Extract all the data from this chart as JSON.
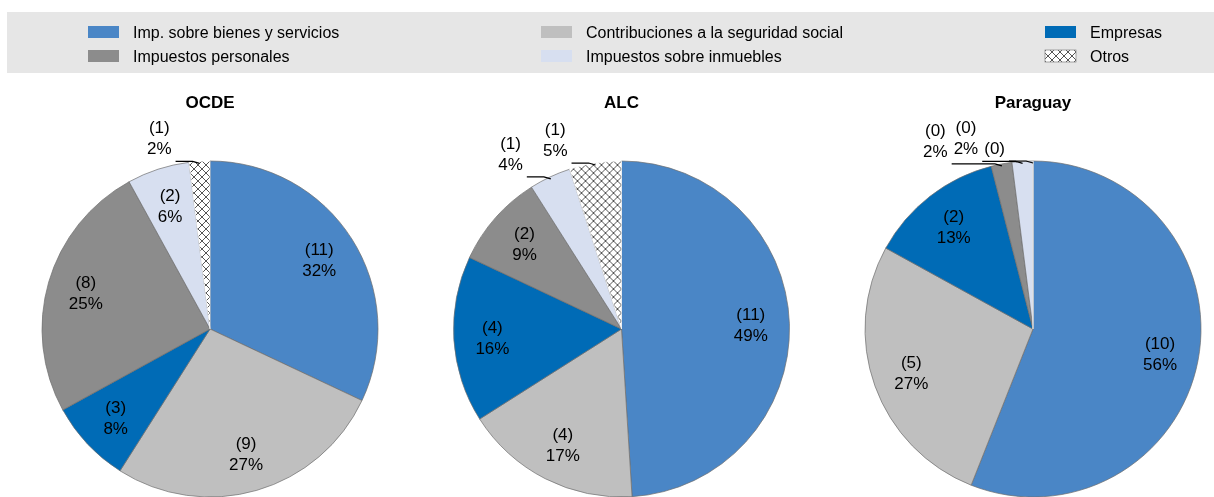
{
  "chart_data": [
    {
      "type": "pie",
      "title": "OCDE",
      "categories": [
        "Imp. sobre bienes y servicios",
        "Contribuciones a la seguridad social",
        "Empresas",
        "Impuestos personales",
        "Impuestos sobre inmuebles",
        "Otros"
      ],
      "values": [
        32,
        27,
        8,
        25,
        6,
        2
      ],
      "colors": [
        "#4a86c6",
        "#bfbfbf",
        "#006bb6",
        "#8c8c8c",
        "#d7dff0",
        "#ffffff"
      ],
      "value_labels": [
        "(11)\n32%",
        "(9)\n27%",
        "(3)\n8%",
        "(8)\n25%",
        "(2)\n6%",
        "(1)\n2%"
      ],
      "legend": "top"
    },
    {
      "type": "pie",
      "title": "ALC",
      "categories": [
        null,
        null,
        null,
        null,
        null,
        null
      ],
      "values": [
        49,
        17,
        16,
        9,
        4,
        5
      ],
      "colors": [
        "#4a86c6",
        "#bfbfbf",
        "#006bb6",
        "#8c8c8c",
        "#d7dff0",
        "#ffffff"
      ],
      "value_labels": [
        "(11)\n49%",
        "(4)\n17%",
        "(4)\n16%",
        "(2)\n9%",
        "(1)\n4%",
        "(1)\n5%"
      ]
    },
    {
      "type": "pie",
      "title": "Paraguay",
      "categories": [
        null,
        null,
        null,
        null,
        null,
        null
      ],
      "values": [
        56,
        27,
        13,
        2,
        2,
        0
      ],
      "colors": [
        "#4a86c6",
        "#bfbfbf",
        "#006bb6",
        "#8c8c8c",
        "#d7dff0",
        "#ffffff"
      ],
      "value_labels": [
        "(10)\n56%",
        "(5)\n27%",
        "(2)\n13%",
        "(0)\n2%",
        "(0)\n2%",
        "(0)"
      ]
    }
  ]
}
